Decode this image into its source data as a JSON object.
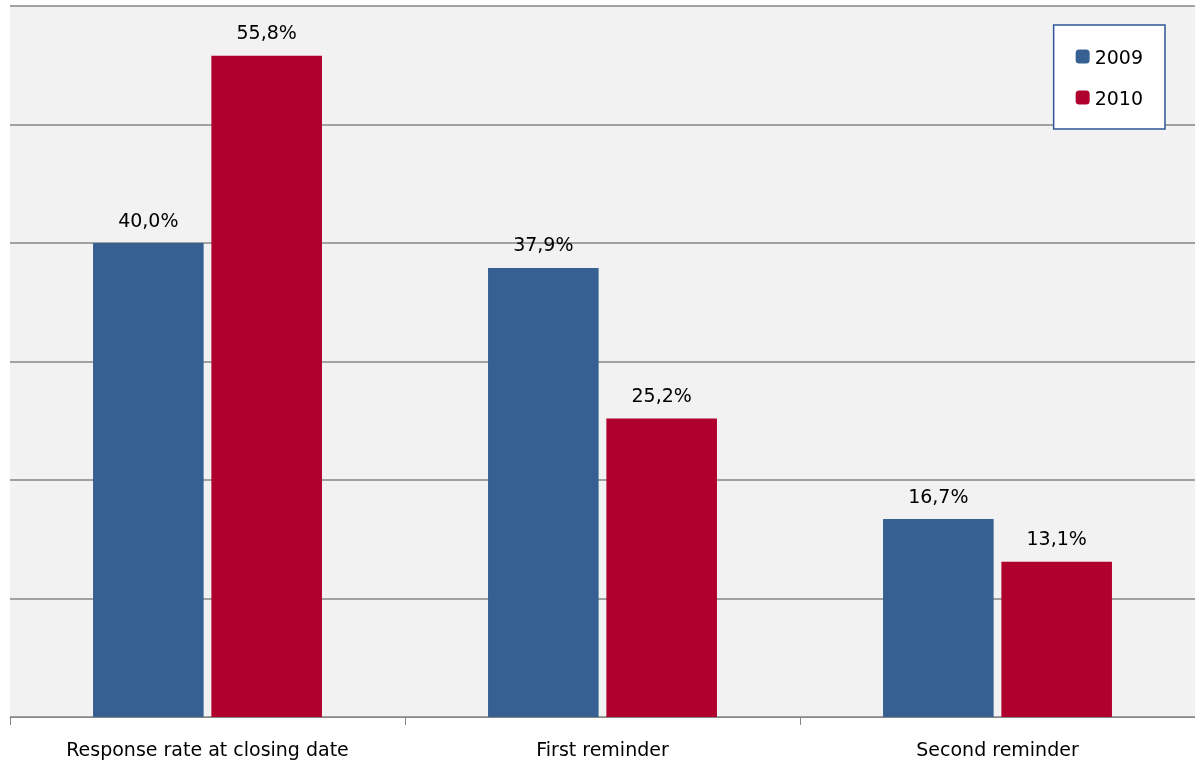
{
  "chart_data": {
    "type": "bar",
    "categories": [
      "Response rate at closing date",
      "First reminder",
      "Second reminder"
    ],
    "series": [
      {
        "name": "2009",
        "color": "#376092",
        "values": [
          40.0,
          37.9,
          16.7
        ],
        "value_labels": [
          "40,0%",
          "37,9%",
          "16,7%"
        ]
      },
      {
        "name": "2010",
        "color": "#b0002e",
        "values": [
          55.8,
          25.2,
          13.1
        ],
        "value_labels": [
          "55,8%",
          "25,2%",
          "13,1%"
        ]
      }
    ],
    "ylim": [
      0,
      60
    ],
    "yticks": [
      {
        "value": 0,
        "label": null
      },
      {
        "value": 10,
        "label": null
      },
      {
        "value": 20,
        "label": null
      },
      {
        "value": 30,
        "label": null
      },
      {
        "value": 40,
        "label": null
      },
      {
        "value": 50,
        "label": null
      },
      {
        "value": 60,
        "label": null
      }
    ],
    "tick_labels": "x",
    "grid": "y",
    "legend": "top right"
  }
}
